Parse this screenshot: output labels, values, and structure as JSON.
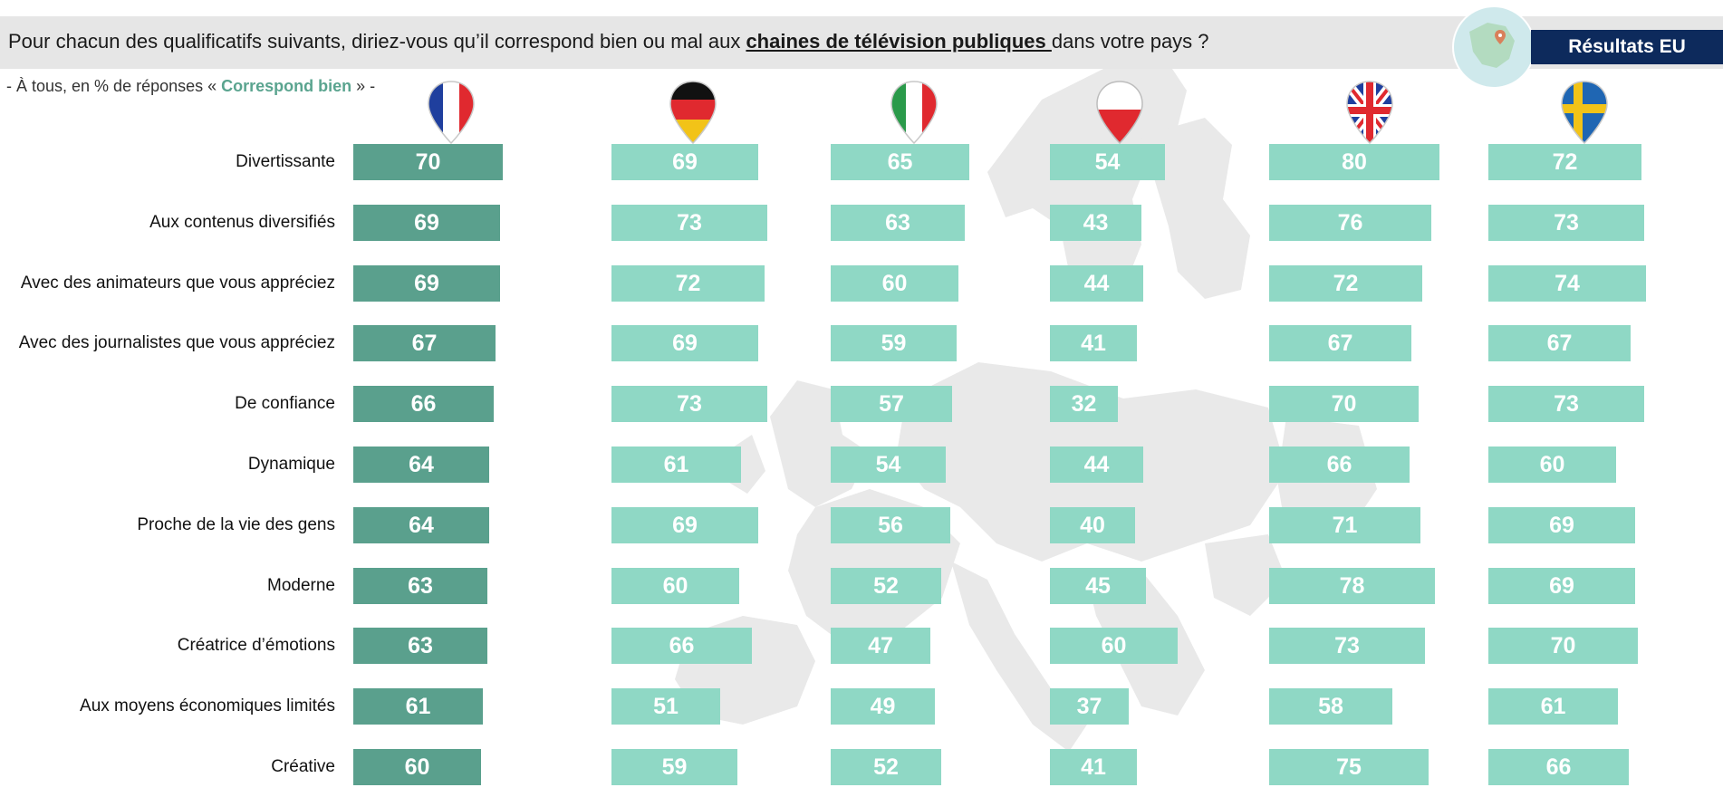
{
  "header": {
    "question_before": "Pour chacun des qualificatifs suivants, diriez-vous qu’il correspond bien ou mal aux ",
    "question_emph": "chaines de télévision publiques ",
    "question_after": "dans votre pays ?",
    "subtitle_before": "- À tous, en % de réponses « ",
    "subtitle_accent": "Correspond bien",
    "subtitle_after": " » -",
    "badge": "Résultats EU"
  },
  "colors": {
    "france_bar": "#5aa08d",
    "other_bars": "#8fd8c5",
    "badge": "#0d2a5c",
    "question_background": "#e6e6e6"
  },
  "chart_data": {
    "type": "bar",
    "categories": [
      "Divertissante",
      "Aux contenus diversifiés",
      "Avec des animateurs que vous appréciez",
      "Avec des journalistes que vous appréciez",
      "De confiance",
      "Dynamique",
      "Proche de la vie des gens",
      "Moderne",
      "Créatrice d’émotions",
      "Aux moyens économiques limités",
      "Créative"
    ],
    "series": [
      {
        "flag": "france-flag-icon",
        "values": [
          70,
          69,
          69,
          67,
          66,
          64,
          64,
          63,
          63,
          61,
          60
        ]
      },
      {
        "flag": "germany-flag-icon",
        "values": [
          69,
          73,
          72,
          69,
          73,
          61,
          69,
          60,
          66,
          51,
          59
        ]
      },
      {
        "flag": "italy-flag-icon",
        "values": [
          65,
          63,
          60,
          59,
          57,
          54,
          56,
          52,
          47,
          49,
          52
        ]
      },
      {
        "flag": "poland-flag-icon",
        "values": [
          54,
          43,
          44,
          41,
          32,
          44,
          40,
          45,
          60,
          37,
          41
        ]
      },
      {
        "flag": "uk-flag-icon",
        "values": [
          80,
          76,
          72,
          67,
          70,
          66,
          71,
          78,
          73,
          58,
          75
        ]
      },
      {
        "flag": "sweden-flag-icon",
        "values": [
          72,
          73,
          74,
          67,
          73,
          60,
          69,
          69,
          70,
          61,
          66
        ]
      }
    ]
  }
}
